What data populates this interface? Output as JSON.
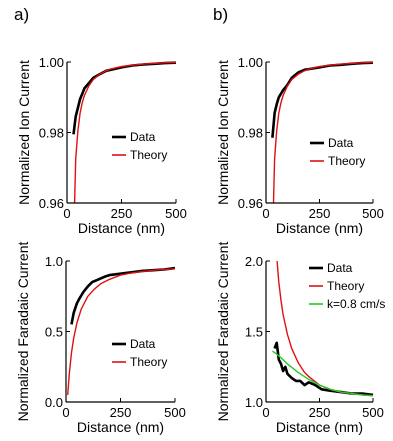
{
  "panel_labels": [
    "a)",
    "b)"
  ],
  "chart_data": [
    {
      "type": "line",
      "panel": "a-top",
      "xlabel": "Distance (nm)",
      "ylabel": "Normalized Ion Current",
      "xlim": [
        0,
        500
      ],
      "ylim": [
        0.96,
        1.0
      ],
      "x_ticks": [
        0,
        250,
        500
      ],
      "x_tick_labels": [
        "0",
        "250",
        "500"
      ],
      "y_ticks": [
        0.96,
        0.98,
        1.0
      ],
      "y_tick_labels": [
        "0.96",
        "0.98",
        "1.00"
      ],
      "legend": [
        "Data",
        "Theory"
      ],
      "legend_position": "center-right",
      "series": [
        {
          "name": "Data",
          "color": "#000000",
          "x": [
            30,
            40,
            50,
            60,
            70,
            80,
            100,
            120,
            150,
            180,
            200,
            250,
            300,
            350,
            400,
            450,
            500
          ],
          "y": [
            0.9795,
            0.9845,
            0.987,
            0.9895,
            0.991,
            0.9925,
            0.994,
            0.9955,
            0.9965,
            0.9975,
            0.9978,
            0.9985,
            0.999,
            0.9993,
            0.9995,
            0.9997,
            0.9998
          ]
        },
        {
          "name": "Theory",
          "color": "#e01010",
          "x": [
            35,
            40,
            50,
            60,
            70,
            80,
            100,
            120,
            150,
            180,
            200,
            250,
            300,
            350,
            400,
            450,
            500
          ],
          "y": [
            0.96,
            0.9725,
            0.9805,
            0.9855,
            0.9885,
            0.9905,
            0.9932,
            0.995,
            0.9965,
            0.9975,
            0.998,
            0.9987,
            0.9991,
            0.9994,
            0.9996,
            0.9998,
            0.9999
          ]
        }
      ]
    },
    {
      "type": "line",
      "panel": "b-top",
      "xlabel": "Distance (nm)",
      "ylabel": "Normalized Ion Current",
      "xlim": [
        0,
        500
      ],
      "ylim": [
        0.96,
        1.0
      ],
      "x_ticks": [
        0,
        250,
        500
      ],
      "x_tick_labels": [
        "0",
        "250",
        "500"
      ],
      "y_ticks": [
        0.96,
        0.98,
        1.0
      ],
      "y_tick_labels": [
        "0.96",
        "0.98",
        "1.00"
      ],
      "legend": [
        "Data",
        "Theory"
      ],
      "legend_position": "center-right",
      "series": [
        {
          "name": "Data",
          "color": "#000000",
          "x": [
            30,
            40,
            50,
            60,
            70,
            80,
            100,
            120,
            150,
            180,
            200,
            250,
            300,
            350,
            400,
            450,
            500
          ],
          "y": [
            0.9785,
            0.9855,
            0.988,
            0.99,
            0.991,
            0.992,
            0.9935,
            0.9955,
            0.997,
            0.9978,
            0.998,
            0.9985,
            0.999,
            0.9992,
            0.9995,
            0.9997,
            0.9998
          ]
        },
        {
          "name": "Theory",
          "color": "#e01010",
          "x": [
            35,
            40,
            50,
            60,
            70,
            80,
            100,
            120,
            150,
            180,
            200,
            250,
            300,
            350,
            400,
            450,
            500
          ],
          "y": [
            0.96,
            0.9725,
            0.9805,
            0.9855,
            0.9885,
            0.9905,
            0.9932,
            0.995,
            0.9965,
            0.9975,
            0.998,
            0.9987,
            0.9991,
            0.9994,
            0.9996,
            0.9998,
            0.9999
          ]
        }
      ]
    },
    {
      "type": "line",
      "panel": "a-bottom",
      "xlabel": "Distance (nm)",
      "ylabel": "Normalized Faradaic Current",
      "xlim": [
        0,
        500
      ],
      "ylim": [
        0.0,
        1.0
      ],
      "x_ticks": [
        0,
        250,
        500
      ],
      "x_tick_labels": [
        "0",
        "250",
        "500"
      ],
      "y_ticks": [
        0.0,
        0.5,
        1.0
      ],
      "y_tick_labels": [
        "0.0",
        "0.5",
        "1.0"
      ],
      "legend": [
        "Data",
        "Theory"
      ],
      "legend_position": "bottom-right",
      "series": [
        {
          "name": "Data",
          "color": "#000000",
          "x": [
            25,
            35,
            50,
            60,
            80,
            100,
            120,
            150,
            180,
            200,
            250,
            300,
            350,
            400,
            450,
            500
          ],
          "y": [
            0.55,
            0.63,
            0.7,
            0.73,
            0.78,
            0.82,
            0.85,
            0.87,
            0.89,
            0.9,
            0.91,
            0.92,
            0.93,
            0.935,
            0.94,
            0.95
          ]
        },
        {
          "name": "Theory",
          "color": "#e01010",
          "x": [
            8,
            15,
            25,
            35,
            50,
            70,
            100,
            130,
            160,
            200,
            250,
            300,
            350,
            400,
            450,
            500
          ],
          "y": [
            0.05,
            0.2,
            0.35,
            0.45,
            0.56,
            0.66,
            0.75,
            0.8,
            0.84,
            0.87,
            0.9,
            0.915,
            0.925,
            0.935,
            0.94,
            0.945
          ]
        }
      ]
    },
    {
      "type": "line",
      "panel": "b-bottom",
      "xlabel": "Distance (nm)",
      "ylabel": "Normalized Faradaic Current",
      "xlim": [
        0,
        500
      ],
      "ylim": [
        1.0,
        2.0
      ],
      "x_ticks": [
        0,
        250,
        500
      ],
      "x_tick_labels": [
        "0",
        "250",
        "500"
      ],
      "y_ticks": [
        1.0,
        1.5,
        2.0
      ],
      "y_tick_labels": [
        "1.0",
        "1.5",
        "2.0"
      ],
      "legend": [
        "Data",
        "Theory",
        "k=0.8 cm/s"
      ],
      "legend_position": "top-right",
      "series": [
        {
          "name": "Data",
          "color": "#000000",
          "x": [
            40,
            50,
            60,
            70,
            80,
            90,
            100,
            120,
            140,
            160,
            180,
            200,
            230,
            260,
            300,
            350,
            400,
            450,
            500
          ],
          "y": [
            1.38,
            1.42,
            1.3,
            1.27,
            1.22,
            1.25,
            1.2,
            1.17,
            1.15,
            1.15,
            1.12,
            1.14,
            1.12,
            1.09,
            1.08,
            1.07,
            1.06,
            1.06,
            1.05
          ]
        },
        {
          "name": "Theory",
          "color": "#e01010",
          "x": [
            52,
            60,
            70,
            80,
            100,
            120,
            150,
            180,
            200,
            250,
            300,
            350,
            400,
            450,
            500
          ],
          "y": [
            2.0,
            1.85,
            1.72,
            1.62,
            1.48,
            1.38,
            1.28,
            1.21,
            1.18,
            1.12,
            1.09,
            1.07,
            1.06,
            1.05,
            1.045
          ]
        },
        {
          "name": "k=0.8 cm/s",
          "color": "#22cc22",
          "x": [
            30,
            50,
            80,
            100,
            150,
            200,
            250,
            300,
            350,
            400,
            450,
            500
          ],
          "y": [
            1.36,
            1.34,
            1.3,
            1.27,
            1.21,
            1.16,
            1.12,
            1.09,
            1.07,
            1.06,
            1.05,
            1.045
          ]
        }
      ]
    }
  ]
}
